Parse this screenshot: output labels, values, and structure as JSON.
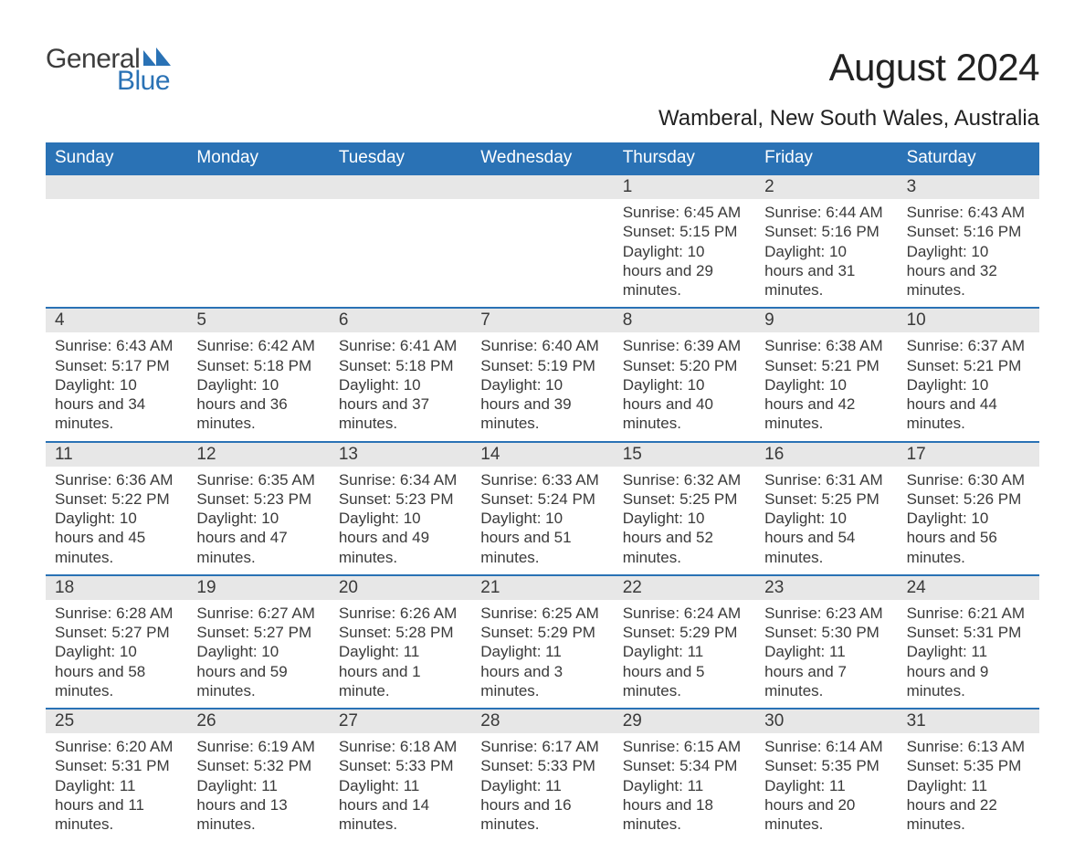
{
  "brand": {
    "word1": "General",
    "word2": "Blue",
    "text_color": "#3d3d3d",
    "accent_color": "#2a72b5"
  },
  "header": {
    "title": "August 2024",
    "location": "Wamberal, New South Wales, Australia"
  },
  "calendar": {
    "header_bg": "#2a72b5",
    "header_fg": "#ffffff",
    "daynum_bg": "#e7e7e7",
    "row_border_color": "#2a72b5",
    "body_text_color": "#3a3a3a",
    "weekdays": [
      "Sunday",
      "Monday",
      "Tuesday",
      "Wednesday",
      "Thursday",
      "Friday",
      "Saturday"
    ],
    "weeks": [
      [
        null,
        null,
        null,
        null,
        {
          "n": "1",
          "sunrise": "6:45 AM",
          "sunset": "5:15 PM",
          "daylight": "10 hours and 29 minutes."
        },
        {
          "n": "2",
          "sunrise": "6:44 AM",
          "sunset": "5:16 PM",
          "daylight": "10 hours and 31 minutes."
        },
        {
          "n": "3",
          "sunrise": "6:43 AM",
          "sunset": "5:16 PM",
          "daylight": "10 hours and 32 minutes."
        }
      ],
      [
        {
          "n": "4",
          "sunrise": "6:43 AM",
          "sunset": "5:17 PM",
          "daylight": "10 hours and 34 minutes."
        },
        {
          "n": "5",
          "sunrise": "6:42 AM",
          "sunset": "5:18 PM",
          "daylight": "10 hours and 36 minutes."
        },
        {
          "n": "6",
          "sunrise": "6:41 AM",
          "sunset": "5:18 PM",
          "daylight": "10 hours and 37 minutes."
        },
        {
          "n": "7",
          "sunrise": "6:40 AM",
          "sunset": "5:19 PM",
          "daylight": "10 hours and 39 minutes."
        },
        {
          "n": "8",
          "sunrise": "6:39 AM",
          "sunset": "5:20 PM",
          "daylight": "10 hours and 40 minutes."
        },
        {
          "n": "9",
          "sunrise": "6:38 AM",
          "sunset": "5:21 PM",
          "daylight": "10 hours and 42 minutes."
        },
        {
          "n": "10",
          "sunrise": "6:37 AM",
          "sunset": "5:21 PM",
          "daylight": "10 hours and 44 minutes."
        }
      ],
      [
        {
          "n": "11",
          "sunrise": "6:36 AM",
          "sunset": "5:22 PM",
          "daylight": "10 hours and 45 minutes."
        },
        {
          "n": "12",
          "sunrise": "6:35 AM",
          "sunset": "5:23 PM",
          "daylight": "10 hours and 47 minutes."
        },
        {
          "n": "13",
          "sunrise": "6:34 AM",
          "sunset": "5:23 PM",
          "daylight": "10 hours and 49 minutes."
        },
        {
          "n": "14",
          "sunrise": "6:33 AM",
          "sunset": "5:24 PM",
          "daylight": "10 hours and 51 minutes."
        },
        {
          "n": "15",
          "sunrise": "6:32 AM",
          "sunset": "5:25 PM",
          "daylight": "10 hours and 52 minutes."
        },
        {
          "n": "16",
          "sunrise": "6:31 AM",
          "sunset": "5:25 PM",
          "daylight": "10 hours and 54 minutes."
        },
        {
          "n": "17",
          "sunrise": "6:30 AM",
          "sunset": "5:26 PM",
          "daylight": "10 hours and 56 minutes."
        }
      ],
      [
        {
          "n": "18",
          "sunrise": "6:28 AM",
          "sunset": "5:27 PM",
          "daylight": "10 hours and 58 minutes."
        },
        {
          "n": "19",
          "sunrise": "6:27 AM",
          "sunset": "5:27 PM",
          "daylight": "10 hours and 59 minutes."
        },
        {
          "n": "20",
          "sunrise": "6:26 AM",
          "sunset": "5:28 PM",
          "daylight": "11 hours and 1 minute."
        },
        {
          "n": "21",
          "sunrise": "6:25 AM",
          "sunset": "5:29 PM",
          "daylight": "11 hours and 3 minutes."
        },
        {
          "n": "22",
          "sunrise": "6:24 AM",
          "sunset": "5:29 PM",
          "daylight": "11 hours and 5 minutes."
        },
        {
          "n": "23",
          "sunrise": "6:23 AM",
          "sunset": "5:30 PM",
          "daylight": "11 hours and 7 minutes."
        },
        {
          "n": "24",
          "sunrise": "6:21 AM",
          "sunset": "5:31 PM",
          "daylight": "11 hours and 9 minutes."
        }
      ],
      [
        {
          "n": "25",
          "sunrise": "6:20 AM",
          "sunset": "5:31 PM",
          "daylight": "11 hours and 11 minutes."
        },
        {
          "n": "26",
          "sunrise": "6:19 AM",
          "sunset": "5:32 PM",
          "daylight": "11 hours and 13 minutes."
        },
        {
          "n": "27",
          "sunrise": "6:18 AM",
          "sunset": "5:33 PM",
          "daylight": "11 hours and 14 minutes."
        },
        {
          "n": "28",
          "sunrise": "6:17 AM",
          "sunset": "5:33 PM",
          "daylight": "11 hours and 16 minutes."
        },
        {
          "n": "29",
          "sunrise": "6:15 AM",
          "sunset": "5:34 PM",
          "daylight": "11 hours and 18 minutes."
        },
        {
          "n": "30",
          "sunrise": "6:14 AM",
          "sunset": "5:35 PM",
          "daylight": "11 hours and 20 minutes."
        },
        {
          "n": "31",
          "sunrise": "6:13 AM",
          "sunset": "5:35 PM",
          "daylight": "11 hours and 22 minutes."
        }
      ]
    ],
    "labels": {
      "sunrise": "Sunrise:",
      "sunset": "Sunset:",
      "daylight": "Daylight:"
    }
  }
}
